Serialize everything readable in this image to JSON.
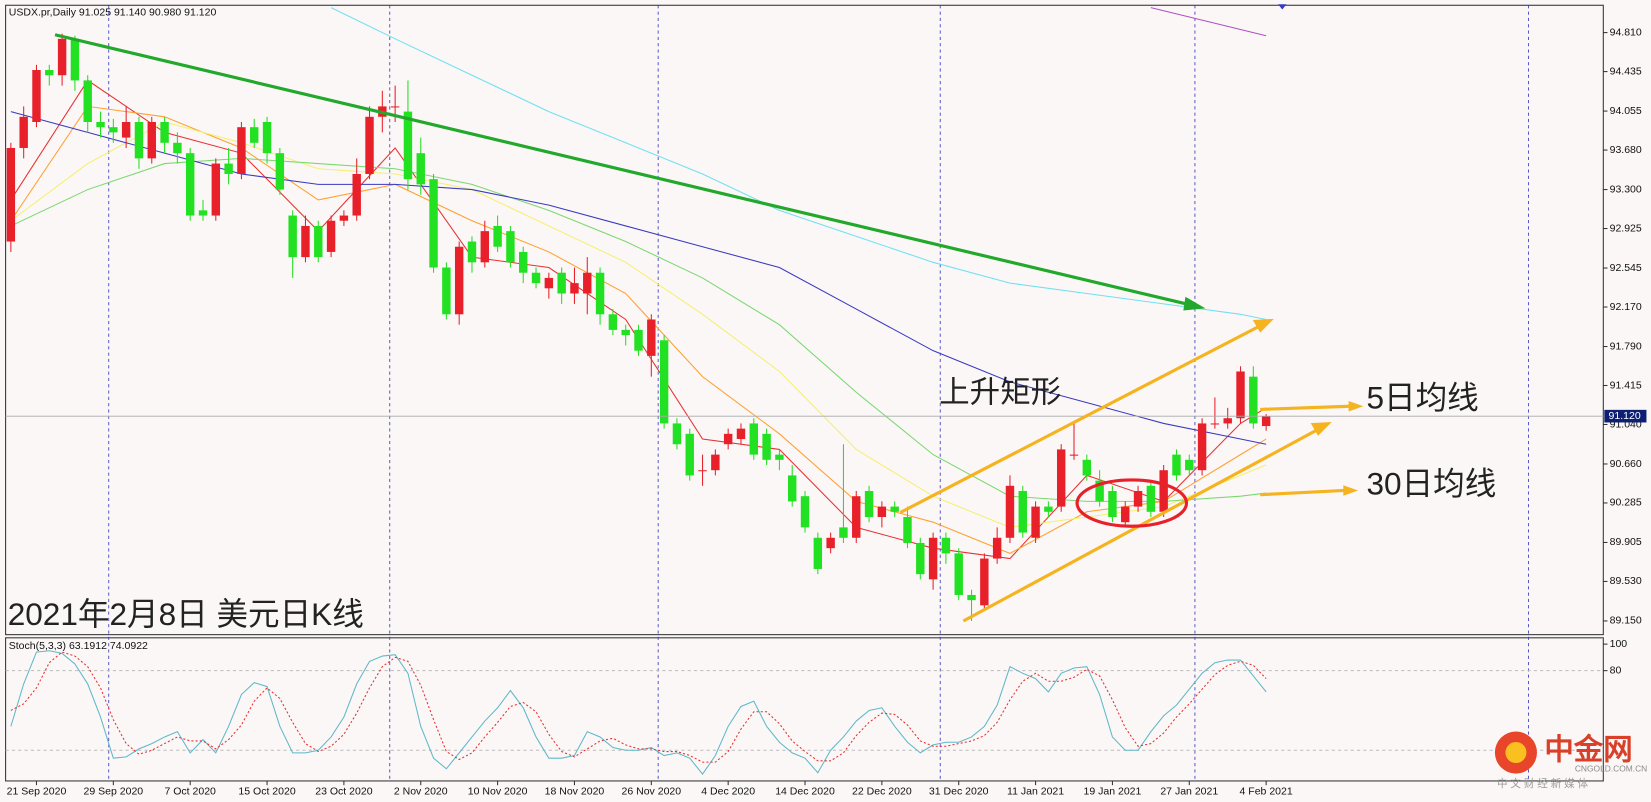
{
  "header": "USDX.pr,Daily  91.025 91.140 90.980 91.120",
  "pattern_label": "上升矩形",
  "ma5_label": "5日均线",
  "ma30_label": "30日均线",
  "caption": "2021年2月8日 美元日K线",
  "watermark": {
    "title": "中金网",
    "url": "CNGOLD.COM.CN",
    "slogan": "中 文 财 经 新 媒 体"
  },
  "chart_data": [
    {
      "type": "candlestick",
      "categories": [
        null,
        null,
        "21 Sep 2020",
        null,
        null,
        null,
        null,
        null,
        "29 Sep 2020",
        null,
        null,
        null,
        null,
        null,
        "7 Oct 2020",
        null,
        null,
        null,
        null,
        null,
        "15 Oct 2020",
        null,
        null,
        null,
        null,
        null,
        "23 Oct 2020",
        null,
        null,
        null,
        null,
        null,
        "2 Nov 2020",
        null,
        null,
        null,
        null,
        null,
        "10 Nov 2020",
        null,
        null,
        null,
        null,
        null,
        "18 Nov 2020",
        null,
        null,
        null,
        null,
        null,
        "26 Nov 2020",
        null,
        null,
        null,
        null,
        null,
        "4 Dec 2020",
        null,
        null,
        null,
        null,
        null,
        "14 Dec 2020",
        null,
        null,
        null,
        null,
        null,
        "22 Dec 2020",
        null,
        null,
        null,
        null,
        null,
        "31 Dec 2020",
        null,
        null,
        null,
        null,
        null,
        "11 Jan 2021",
        null,
        null,
        null,
        null,
        null,
        "19 Jan 2021",
        null,
        null,
        null,
        null,
        null,
        "27 Jan 2021",
        null,
        null,
        null,
        null,
        null,
        "4 Feb 2021"
      ],
      "open": [
        92.8,
        93.7,
        93.95,
        94.45,
        94.4,
        94.75,
        94.35,
        93.95,
        93.9,
        93.8,
        93.95,
        93.6,
        93.95,
        93.75,
        93.65,
        93.1,
        93.05,
        93.55,
        93.45,
        93.9,
        93.95,
        93.65,
        93.05,
        92.65,
        92.95,
        92.7,
        93.0,
        93.05,
        93.45,
        94.0,
        94.1,
        94.05,
        93.65,
        93.4,
        92.55,
        92.1,
        92.8,
        92.6,
        92.95,
        92.9,
        92.7,
        92.5,
        92.35,
        92.5,
        92.3,
        92.3,
        92.5,
        92.1,
        91.95,
        91.95,
        91.7,
        91.85,
        91.05,
        90.95,
        90.6,
        90.6,
        90.85,
        90.9,
        91.05,
        90.95,
        90.75,
        90.55,
        90.35,
        89.95,
        89.85,
        90.05,
        89.95,
        90.4,
        90.15,
        90.25,
        90.15,
        89.9,
        89.55,
        89.95,
        89.8,
        89.4,
        89.3,
        89.75,
        89.95,
        90.4,
        89.95,
        90.25,
        90.25,
        90.75,
        90.7,
        90.5,
        90.4,
        90.1,
        90.25,
        90.45,
        90.2,
        90.75,
        90.7,
        90.6,
        91.05,
        91.05,
        91.1,
        91.5,
        91.025
      ],
      "high": [
        93.75,
        94.1,
        94.5,
        94.5,
        94.8,
        94.78,
        94.4,
        94.05,
        93.98,
        94.1,
        94.0,
        94.0,
        94.0,
        93.85,
        93.7,
        93.2,
        93.6,
        93.7,
        93.95,
        93.98,
        94.0,
        93.7,
        93.1,
        93.05,
        93.0,
        93.05,
        93.1,
        93.6,
        94.1,
        94.25,
        94.3,
        94.35,
        93.8,
        93.45,
        92.6,
        92.8,
        92.85,
        93.0,
        93.05,
        92.95,
        92.75,
        92.55,
        92.5,
        92.55,
        92.55,
        92.65,
        92.55,
        92.15,
        92.0,
        92.0,
        92.1,
        91.9,
        91.1,
        91.0,
        90.75,
        90.8,
        91.0,
        91.05,
        91.1,
        91.0,
        90.8,
        90.65,
        90.4,
        90.0,
        90.0,
        90.85,
        90.4,
        90.45,
        90.3,
        90.3,
        90.25,
        89.95,
        90.0,
        90.0,
        89.85,
        89.45,
        89.8,
        90.05,
        90.55,
        90.45,
        90.3,
        90.3,
        90.85,
        91.05,
        90.75,
        90.6,
        90.45,
        90.3,
        90.45,
        90.5,
        90.65,
        90.8,
        90.75,
        91.1,
        91.3,
        91.2,
        91.6,
        91.6,
        91.14
      ],
      "low": [
        92.7,
        93.6,
        93.9,
        94.3,
        94.3,
        94.25,
        93.85,
        93.8,
        93.75,
        93.7,
        93.5,
        93.55,
        93.65,
        93.55,
        93.0,
        93.0,
        93.0,
        93.35,
        93.4,
        93.7,
        93.55,
        93.25,
        92.45,
        92.6,
        92.6,
        92.65,
        92.95,
        93.0,
        93.4,
        93.85,
        93.95,
        93.3,
        93.25,
        92.5,
        92.05,
        92.0,
        92.5,
        92.55,
        92.7,
        92.55,
        92.4,
        92.35,
        92.25,
        92.2,
        92.2,
        92.1,
        92.0,
        91.9,
        91.8,
        91.7,
        91.5,
        91.0,
        90.8,
        90.5,
        90.45,
        90.55,
        90.8,
        90.85,
        90.7,
        90.65,
        90.6,
        90.25,
        90.0,
        89.6,
        89.8,
        89.9,
        89.9,
        90.1,
        90.05,
        90.15,
        89.85,
        89.55,
        89.45,
        89.7,
        89.35,
        89.15,
        89.25,
        89.7,
        89.9,
        89.95,
        89.9,
        90.15,
        90.2,
        90.7,
        90.5,
        90.25,
        90.1,
        90.05,
        90.2,
        90.15,
        90.15,
        90.5,
        90.55,
        90.55,
        91.0,
        91.0,
        91.05,
        91.0,
        90.98
      ],
      "close": [
        93.7,
        94.0,
        94.45,
        94.4,
        94.75,
        94.35,
        93.95,
        93.9,
        93.85,
        93.95,
        93.6,
        93.95,
        93.75,
        93.65,
        93.05,
        93.05,
        93.55,
        93.45,
        93.9,
        93.75,
        93.65,
        93.3,
        92.65,
        92.95,
        92.65,
        93.0,
        93.05,
        93.45,
        94.0,
        94.1,
        94.1,
        93.4,
        93.35,
        92.55,
        92.1,
        92.75,
        92.6,
        92.9,
        92.75,
        92.6,
        92.5,
        92.4,
        92.45,
        92.3,
        92.4,
        92.5,
        92.1,
        91.95,
        91.9,
        91.75,
        92.05,
        91.05,
        90.85,
        90.55,
        90.6,
        90.75,
        90.95,
        91.0,
        90.75,
        90.7,
        90.7,
        90.3,
        90.05,
        89.65,
        89.95,
        89.95,
        90.35,
        90.15,
        90.25,
        90.2,
        89.9,
        89.6,
        89.95,
        89.8,
        89.4,
        89.35,
        89.75,
        89.95,
        90.45,
        90.0,
        90.25,
        90.2,
        90.8,
        90.75,
        90.55,
        90.3,
        90.15,
        90.25,
        90.4,
        90.2,
        90.6,
        90.55,
        90.6,
        91.05,
        91.05,
        91.1,
        91.55,
        91.05,
        91.12
      ],
      "up_color": "#e8202a",
      "down_color": "#22e022",
      "lines": [
        {
          "color": "#e83030",
          "x": [
            0,
            6,
            12,
            18,
            24,
            30,
            36,
            42,
            48,
            54,
            60,
            66,
            72,
            78,
            84,
            90,
            96,
            98
          ],
          "values": [
            93.2,
            94.35,
            93.85,
            93.65,
            92.9,
            93.7,
            92.65,
            92.55,
            92.05,
            90.9,
            90.8,
            90.05,
            89.85,
            89.75,
            90.55,
            90.3,
            91.05,
            91.2
          ]
        },
        {
          "color": "#ffa030",
          "x": [
            0,
            6,
            12,
            18,
            24,
            30,
            36,
            42,
            48,
            54,
            60,
            66,
            72,
            78,
            84,
            90,
            96,
            98
          ],
          "values": [
            93.0,
            94.1,
            94.0,
            93.7,
            93.2,
            93.35,
            93.0,
            92.7,
            92.3,
            91.5,
            90.95,
            90.3,
            90.1,
            89.8,
            90.2,
            90.3,
            90.75,
            90.9
          ]
        },
        {
          "color": "#f4f070",
          "x": [
            0,
            6,
            12,
            18,
            24,
            30,
            36,
            42,
            48,
            54,
            60,
            66,
            72,
            78,
            84,
            90,
            96,
            98
          ],
          "values": [
            93.0,
            93.55,
            93.95,
            93.75,
            93.5,
            93.45,
            93.3,
            92.95,
            92.6,
            92.1,
            91.55,
            90.8,
            90.35,
            90.05,
            90.15,
            90.25,
            90.55,
            90.65
          ]
        },
        {
          "color": "#7ad870",
          "x": [
            0,
            6,
            12,
            18,
            24,
            30,
            36,
            42,
            48,
            54,
            60,
            66,
            72,
            78,
            84,
            90,
            96,
            98
          ],
          "values": [
            92.95,
            93.3,
            93.55,
            93.6,
            93.55,
            93.5,
            93.35,
            93.1,
            92.8,
            92.45,
            92.0,
            91.35,
            90.75,
            90.35,
            90.3,
            90.3,
            90.35,
            90.38
          ]
        },
        {
          "color": "#3a3ac0",
          "x": [
            0,
            6,
            12,
            18,
            24,
            30,
            36,
            42,
            48,
            54,
            60,
            66,
            72,
            78,
            84,
            90,
            96,
            98
          ],
          "values": [
            94.05,
            93.85,
            93.65,
            93.45,
            93.35,
            93.35,
            93.3,
            93.15,
            92.95,
            92.75,
            92.55,
            92.15,
            91.75,
            91.45,
            91.25,
            91.05,
            90.9,
            90.85
          ]
        },
        {
          "color": "#70e0f0",
          "x": [
            25,
            30,
            36,
            42,
            48,
            54,
            60,
            66,
            72,
            78,
            84,
            90,
            96,
            98
          ],
          "values": [
            95.05,
            94.75,
            94.4,
            94.05,
            93.75,
            93.45,
            93.1,
            92.85,
            92.6,
            92.4,
            92.3,
            92.2,
            92.1,
            92.05
          ]
        },
        {
          "color": "#b050c0",
          "x": [
            89,
            98
          ],
          "values": [
            95.05,
            94.78
          ]
        }
      ],
      "ylim": [
        89.018,
        95.073
      ],
      "yticks": [
        {
          "value": 94.81,
          "label": "94.810"
        },
        {
          "value": 94.435,
          "label": "94.435"
        },
        {
          "value": 94.055,
          "label": "94.055"
        },
        {
          "value": 93.68,
          "label": "93.680"
        },
        {
          "value": 93.3,
          "label": "93.300"
        },
        {
          "value": 92.925,
          "label": "92.925"
        },
        {
          "value": 92.545,
          "label": "92.545"
        },
        {
          "value": 92.17,
          "label": "92.170"
        },
        {
          "value": 91.79,
          "label": "91.790"
        },
        {
          "value": 91.415,
          "label": "91.415"
        },
        {
          "value": 91.04,
          "label": "91.040"
        },
        {
          "value": 90.66,
          "label": "90.660"
        },
        {
          "value": 90.285,
          "label": "90.285"
        },
        {
          "value": 89.905,
          "label": "89.905"
        },
        {
          "value": 89.53,
          "label": "89.530"
        },
        {
          "value": 89.15,
          "label": "89.150"
        }
      ],
      "current_price": {
        "value": 91.12,
        "label": "91.120"
      }
    },
    {
      "type": "line",
      "title": "Stoch(5,3,3) 63.1912 74.0922",
      "series": [
        {
          "color": "#5fb8c8",
          "values": [
            38,
            70,
            94,
            95,
            93,
            85,
            70,
            45,
            14,
            15,
            21,
            25,
            30,
            34,
            18,
            28,
            18,
            38,
            62,
            71,
            68,
            38,
            18,
            18,
            20,
            30,
            45,
            70,
            87,
            91,
            92,
            78,
            38,
            14,
            6,
            18,
            30,
            42,
            52,
            65,
            52,
            30,
            14,
            14,
            16,
            34,
            30,
            22,
            20,
            20,
            22,
            16,
            18,
            14,
            2,
            16,
            38,
            53,
            57,
            38,
            26,
            18,
            14,
            3,
            20,
            30,
            42,
            50,
            52,
            38,
            26,
            18,
            24,
            26,
            26,
            30,
            38,
            54,
            83,
            78,
            74,
            64,
            78,
            82,
            83,
            62,
            30,
            20,
            20,
            34,
            46,
            54,
            66,
            78,
            86,
            88,
            88,
            76,
            64
          ]
        },
        {
          "color": "#e83030",
          "dashed": true,
          "values": [
            50,
            55,
            67,
            86,
            94,
            91,
            83,
            67,
            43,
            25,
            17,
            20,
            25,
            30,
            27,
            27,
            21,
            28,
            39,
            57,
            67,
            59,
            41,
            25,
            19,
            23,
            32,
            48,
            67,
            83,
            90,
            87,
            69,
            43,
            19,
            13,
            18,
            30,
            41,
            53,
            56,
            49,
            32,
            19,
            15,
            21,
            27,
            29,
            24,
            21,
            21,
            19,
            19,
            16,
            11,
            11,
            19,
            36,
            49,
            49,
            40,
            27,
            19,
            12,
            12,
            18,
            31,
            41,
            48,
            47,
            39,
            27,
            23,
            23,
            25,
            27,
            31,
            41,
            58,
            72,
            78,
            72,
            72,
            75,
            81,
            76,
            58,
            37,
            23,
            25,
            33,
            45,
            55,
            66,
            77,
            84,
            87,
            84,
            74
          ]
        }
      ],
      "ylim": [
        0,
        100
      ],
      "yticks": [
        100,
        80
      ],
      "levels": [
        80,
        20
      ]
    }
  ]
}
